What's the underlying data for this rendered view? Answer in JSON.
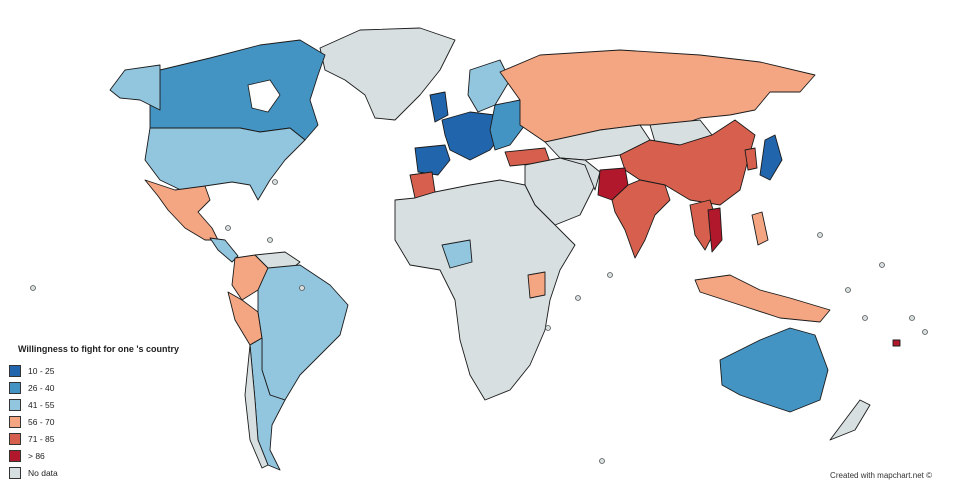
{
  "legend": {
    "title": "Willingness to fight for one 's country",
    "items": [
      {
        "label": "10 - 25",
        "color": "#2166ac"
      },
      {
        "label": "26 - 40",
        "color": "#4393c3"
      },
      {
        "label": "41 - 55",
        "color": "#92c5de"
      },
      {
        "label": "56 - 70",
        "color": "#f4a582"
      },
      {
        "label": "71 - 85",
        "color": "#d6604d"
      },
      {
        "label": "> 86",
        "color": "#b2182b"
      },
      {
        "label": "No data",
        "color": "#d7dfe1"
      }
    ]
  },
  "credit": "Created with mapchart.net ©",
  "colors": {
    "c10_25": "#2166ac",
    "c26_40": "#4393c3",
    "c41_55": "#92c5de",
    "c56_70": "#f4a582",
    "c71_85": "#d6604d",
    "c86": "#b2182b",
    "nodata": "#d7dfe1"
  }
}
